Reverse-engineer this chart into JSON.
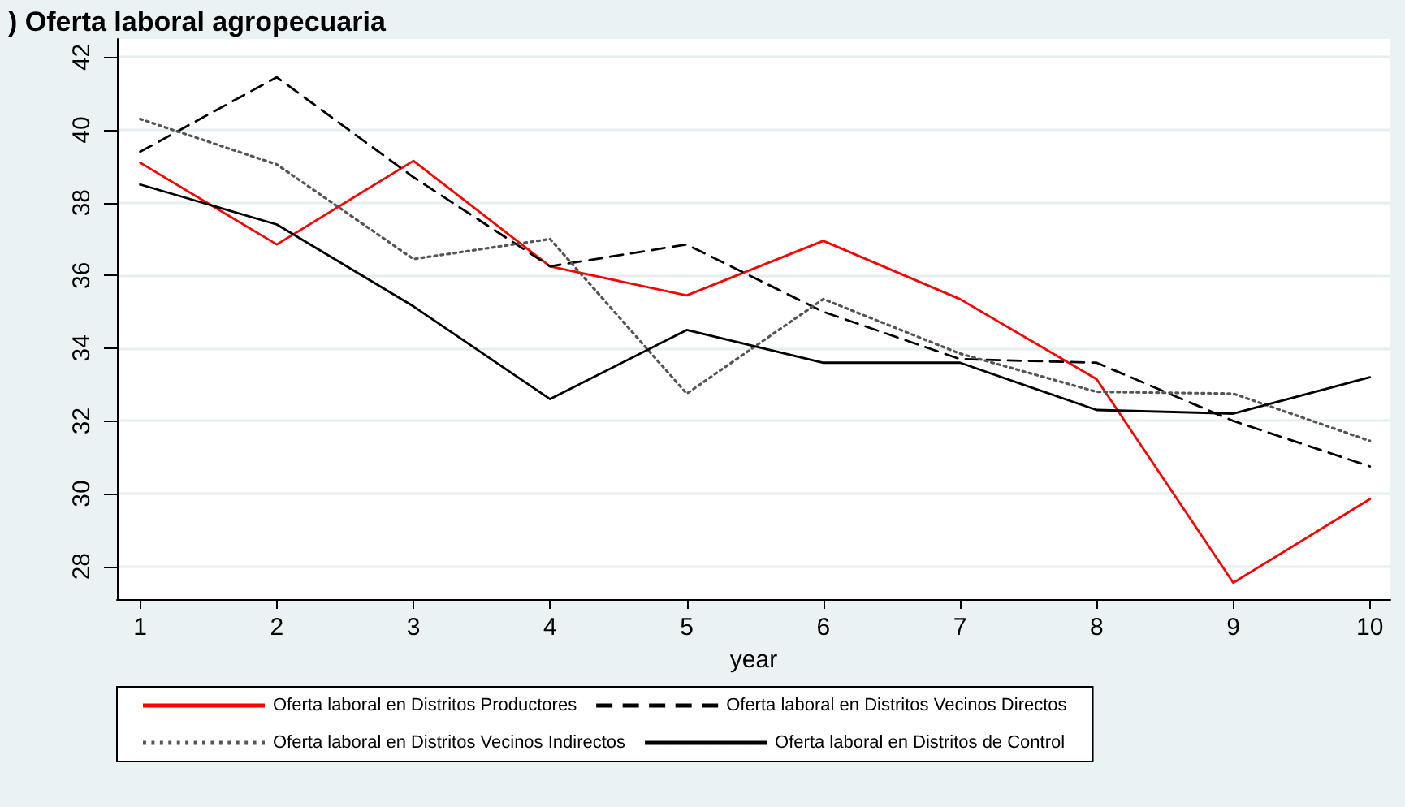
{
  "chart_data": {
    "type": "line",
    "title": ") Oferta laboral agropecuaria",
    "xlabel": "year",
    "x": [
      1,
      2,
      3,
      4,
      5,
      6,
      7,
      8,
      9,
      10
    ],
    "series": [
      {
        "name": "Oferta laboral en Distritos Productores",
        "color": "#ff0000",
        "line_style": "solid",
        "values": [
          39.1,
          36.85,
          39.15,
          36.25,
          35.45,
          36.95,
          35.35,
          33.15,
          27.55,
          29.85
        ]
      },
      {
        "name": "Oferta laboral en Distritos Vecinos Directos",
        "color": "#000000",
        "line_style": "dashed",
        "values": [
          39.4,
          41.45,
          38.7,
          36.25,
          36.85,
          35.0,
          33.7,
          33.6,
          32.0,
          30.75
        ]
      },
      {
        "name": "Oferta laboral en Distritos Vecinos Indirectos",
        "color": "#555555",
        "line_style": "dotted",
        "values": [
          40.3,
          39.05,
          36.45,
          37.0,
          32.75,
          35.35,
          33.85,
          32.8,
          32.75,
          31.45
        ]
      },
      {
        "name": "Oferta laboral en Distritos de Control",
        "color": "#000000",
        "line_style": "solid",
        "values": [
          38.5,
          37.4,
          35.15,
          32.6,
          34.5,
          33.6,
          33.6,
          32.3,
          32.2,
          33.2
        ]
      }
    ],
    "xlim": [
      0.83,
      10.15
    ],
    "xticks": [
      1,
      2,
      3,
      4,
      5,
      6,
      7,
      8,
      9,
      10
    ],
    "ylim": [
      27.1,
      42.5
    ],
    "yticks": [
      28,
      30,
      32,
      34,
      36,
      38,
      40,
      42
    ],
    "grid": "y",
    "legend": "bottom",
    "marker": "none"
  }
}
